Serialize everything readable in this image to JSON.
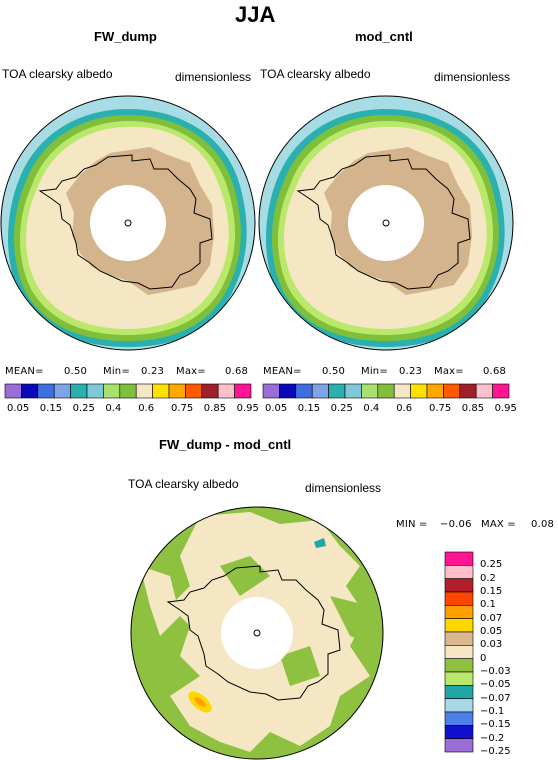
{
  "title": "JJA",
  "panels": [
    {
      "title": "FW_dump",
      "left_label": "TOA clearsky albedo",
      "right_label": "dimensionless",
      "stats": {
        "mean_label": "MEAN=",
        "mean": "0.50",
        "min_label": "Min=",
        "min": "0.23",
        "max_label": "Max=",
        "max": "0.68"
      }
    },
    {
      "title": "mod_cntl",
      "left_label": "TOA clearsky albedo",
      "right_label": "dimensionless",
      "stats": {
        "mean_label": "MEAN=",
        "mean": "0.50",
        "min_label": "Min=",
        "min": "0.23",
        "max_label": "Max=",
        "max": "0.68"
      }
    },
    {
      "title": "FW_dump - mod_cntl",
      "left_label": "TOA clearsky albedo",
      "right_label": "dimensionless",
      "stats": {
        "min_label": "MIN =",
        "min": "−0.06",
        "max_label": "MAX =",
        "max": "0.08"
      }
    }
  ],
  "colorbar_abs": {
    "colors": [
      "#9b6dd6",
      "#0a0ab8",
      "#3e6fe0",
      "#7fa3e8",
      "#2bb0b0",
      "#7fc8d8",
      "#a9e06e",
      "#7fbf3a",
      "#f5e6c4",
      "#ffe100",
      "#ffa800",
      "#ff5a00",
      "#a0202a",
      "#ffc0cb",
      "#ff1493"
    ],
    "ticks": [
      "0.05",
      "0.15",
      "0.25",
      "0.4",
      "0.6",
      "0.75",
      "0.85",
      "0.95"
    ]
  },
  "colorbar_diff": {
    "colors": [
      "#ff1493",
      "#ffc0cb",
      "#b01f2a",
      "#ff4500",
      "#ffa000",
      "#ffd700",
      "#dcb88e",
      "#f5e6c4",
      "#8ec13f",
      "#b9e86a",
      "#1fa7a7",
      "#a8d8e8",
      "#4a80e8",
      "#1010d0",
      "#9b6dd6"
    ],
    "ticks": [
      "0.25",
      "0.2",
      "0.15",
      "0.1",
      "0.07",
      "0.05",
      "0.03",
      "0",
      "−0.03",
      "−0.05",
      "−0.07",
      "−0.1",
      "−0.15",
      "−0.2",
      "−0.25"
    ]
  }
}
